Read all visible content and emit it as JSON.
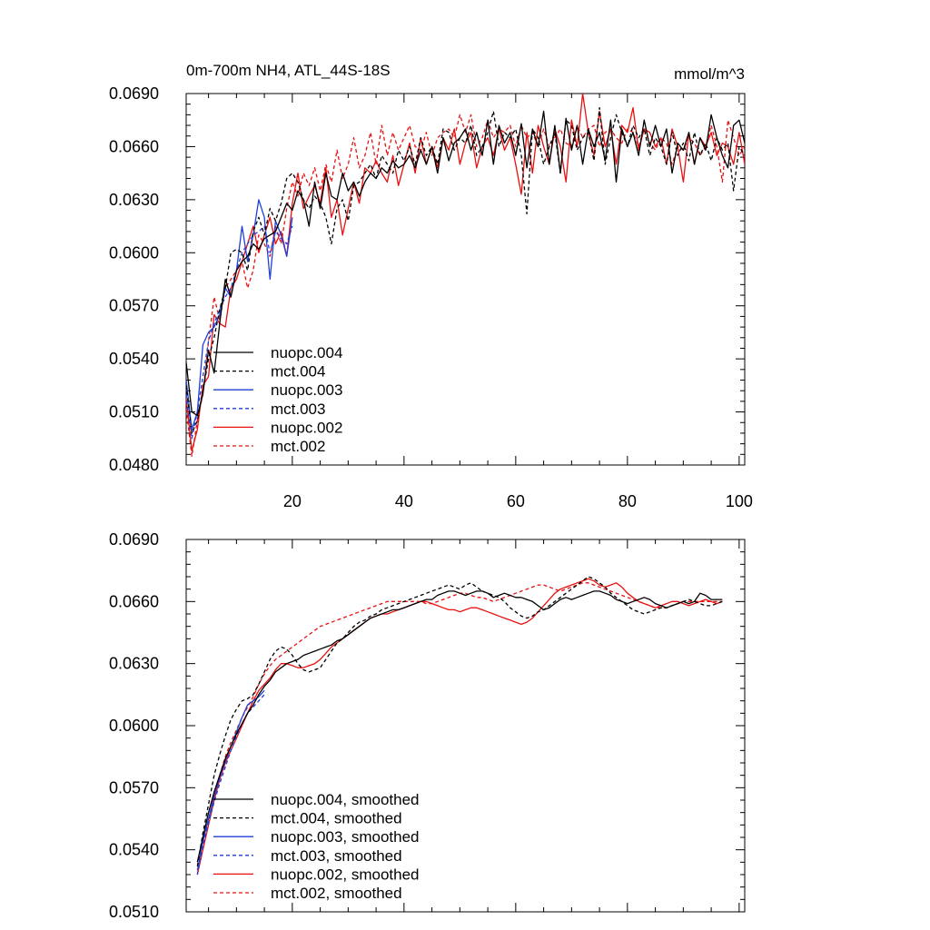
{
  "chart_data": [
    {
      "type": "line",
      "title": "0m-700m NH4, ATL_44S-18S",
      "units": "mmol/m^3",
      "xlabel": "",
      "ylabel": "",
      "xlim": [
        1,
        101
      ],
      "ylim": [
        0.048,
        0.069
      ],
      "xticks": [
        20,
        40,
        60,
        80,
        100
      ],
      "yticks": [
        "0.0480",
        "0.0510",
        "0.0540",
        "0.0570",
        "0.0600",
        "0.0630",
        "0.0660",
        "0.0690"
      ],
      "legend_position": "lower-left",
      "series": [
        {
          "name": "nuopc.004",
          "color": "#000000",
          "dash": "solid",
          "x_start": 1,
          "values": [
            0.0538,
            0.051,
            0.0508,
            0.052,
            0.0545,
            0.0532,
            0.056,
            0.0585,
            0.0575,
            0.059,
            0.0595,
            0.0598,
            0.0605,
            0.0602,
            0.0608,
            0.061,
            0.0612,
            0.062,
            0.0628,
            0.0624,
            0.0635,
            0.063,
            0.0615,
            0.064,
            0.0625,
            0.0645,
            0.0632,
            0.063,
            0.0645,
            0.0635,
            0.064,
            0.0632,
            0.064,
            0.0645,
            0.0642,
            0.0648,
            0.0645,
            0.0652,
            0.0648,
            0.065,
            0.0655,
            0.0648,
            0.0658,
            0.065,
            0.066,
            0.0645,
            0.0665,
            0.0652,
            0.0662,
            0.0665,
            0.067,
            0.0658,
            0.0668,
            0.0655,
            0.0675,
            0.065,
            0.0672,
            0.0662,
            0.0668,
            0.0655,
            0.0673,
            0.0648,
            0.067,
            0.066,
            0.068,
            0.065,
            0.0672,
            0.0645,
            0.0676,
            0.0658,
            0.0672,
            0.065,
            0.067,
            0.066,
            0.0668,
            0.0652,
            0.0675,
            0.064,
            0.067,
            0.066,
            0.0668,
            0.0655,
            0.0675,
            0.066,
            0.0672,
            0.066,
            0.067,
            0.0645,
            0.0662,
            0.0658,
            0.0668,
            0.065,
            0.0665,
            0.0658,
            0.0678,
            0.0665,
            0.0655,
            0.0648,
            0.0672,
            0.0675,
            0.0662
          ]
        },
        {
          "name": "mct.004",
          "color": "#000000",
          "dash": "dashed",
          "x_start": 1,
          "values": [
            0.0525,
            0.0498,
            0.0505,
            0.0522,
            0.054,
            0.0552,
            0.0568,
            0.058,
            0.06,
            0.0602,
            0.06,
            0.059,
            0.0612,
            0.062,
            0.061,
            0.0625,
            0.0618,
            0.0628,
            0.0642,
            0.0645,
            0.064,
            0.063,
            0.0625,
            0.0632,
            0.0628,
            0.062,
            0.0605,
            0.0625,
            0.063,
            0.0618,
            0.0638,
            0.064,
            0.0645,
            0.065,
            0.0642,
            0.0655,
            0.065,
            0.0645,
            0.0658,
            0.0652,
            0.066,
            0.065,
            0.0665,
            0.0655,
            0.066,
            0.065,
            0.067,
            0.0668,
            0.0658,
            0.0665,
            0.0662,
            0.0672,
            0.0655,
            0.066,
            0.0668,
            0.068,
            0.066,
            0.0668,
            0.0665,
            0.067,
            0.0655,
            0.0622,
            0.067,
            0.0665,
            0.065,
            0.066,
            0.0668,
            0.0645,
            0.0675,
            0.0672,
            0.0658,
            0.0665,
            0.0668,
            0.0652,
            0.0682,
            0.065,
            0.0665,
            0.0678,
            0.0668,
            0.066,
            0.0672,
            0.0665,
            0.067,
            0.0655,
            0.0665,
            0.066,
            0.065,
            0.0668,
            0.0655,
            0.0662,
            0.0652,
            0.0668,
            0.0655,
            0.0662,
            0.0652,
            0.0665,
            0.0658,
            0.0662,
            0.0635,
            0.066,
            0.0655
          ]
        },
        {
          "name": "nuopc.003",
          "color": "#1f3fd9",
          "dash": "solid",
          "x_start": 1,
          "values": [
            0.0528,
            0.05,
            0.051,
            0.0548,
            0.0555,
            0.0558,
            0.0565,
            0.058,
            0.0575,
            0.059,
            0.0615,
            0.0595,
            0.061,
            0.063,
            0.062,
            0.0585,
            0.0618,
            0.061,
            0.0598,
            0.062
          ]
        },
        {
          "name": "mct.003",
          "color": "#1f3fd9",
          "dash": "dashed",
          "x_start": 1,
          "values": [
            0.052,
            0.0495,
            0.051,
            0.053,
            0.055,
            0.056,
            0.0568,
            0.0575,
            0.058,
            0.059,
            0.06,
            0.0605,
            0.061,
            0.0612,
            0.0615,
            0.06,
            0.0612,
            0.0608,
            0.0605,
            0.0615
          ]
        },
        {
          "name": "nuopc.002",
          "color": "#e81010",
          "dash": "solid",
          "x_start": 1,
          "values": [
            0.0518,
            0.0488,
            0.05,
            0.0525,
            0.053,
            0.0565,
            0.056,
            0.0558,
            0.058,
            0.0585,
            0.0595,
            0.0605,
            0.0615,
            0.06,
            0.061,
            0.062,
            0.0605,
            0.0612,
            0.0598,
            0.0628,
            0.0645,
            0.0625,
            0.0632,
            0.0638,
            0.0628,
            0.0648,
            0.062,
            0.063,
            0.061,
            0.0625,
            0.064,
            0.0628,
            0.0648,
            0.0645,
            0.0652,
            0.0645,
            0.064,
            0.0655,
            0.0638,
            0.065,
            0.0662,
            0.0645,
            0.0665,
            0.065,
            0.066,
            0.0648,
            0.0665,
            0.0658,
            0.067,
            0.065,
            0.0662,
            0.0668,
            0.0648,
            0.066,
            0.0665,
            0.0655,
            0.067,
            0.0658,
            0.0665,
            0.065,
            0.0633,
            0.0668,
            0.0645,
            0.0672,
            0.066,
            0.065,
            0.067,
            0.066,
            0.064,
            0.0675,
            0.066,
            0.069,
            0.0668,
            0.0655,
            0.068,
            0.066,
            0.067,
            0.065,
            0.0672,
            0.0668,
            0.0682,
            0.0658,
            0.067,
            0.0668,
            0.066,
            0.0665,
            0.065,
            0.067,
            0.066,
            0.064,
            0.0668,
            0.065,
            0.0665,
            0.066,
            0.0668,
            0.0655,
            0.0662,
            0.066,
            0.065,
            0.0668,
            0.065
          ]
        },
        {
          "name": "mct.002",
          "color": "#e81010",
          "dash": "dashed",
          "x_start": 1,
          "values": [
            0.0512,
            0.0485,
            0.0505,
            0.052,
            0.055,
            0.0575,
            0.0562,
            0.058,
            0.0585,
            0.059,
            0.0595,
            0.058,
            0.059,
            0.061,
            0.0605,
            0.0598,
            0.0615,
            0.0605,
            0.0625,
            0.064,
            0.0632,
            0.0645,
            0.0638,
            0.0648,
            0.0635,
            0.065,
            0.064,
            0.0658,
            0.0642,
            0.065,
            0.0665,
            0.0648,
            0.0655,
            0.0668,
            0.065,
            0.0672,
            0.0655,
            0.0668,
            0.0658,
            0.0665,
            0.0672,
            0.066,
            0.0658,
            0.0668,
            0.0655,
            0.0665,
            0.0668,
            0.067,
            0.0665,
            0.0678,
            0.0668,
            0.0678,
            0.066,
            0.0665,
            0.0675,
            0.0665,
            0.067,
            0.0668,
            0.0672,
            0.066,
            0.0672,
            0.0665,
            0.0668,
            0.066,
            0.067,
            0.066,
            0.0665,
            0.067,
            0.0662,
            0.066,
            0.0672,
            0.0665,
            0.067,
            0.0672,
            0.066,
            0.0668,
            0.067,
            0.0665,
            0.0662,
            0.067,
            0.0668,
            0.066,
            0.067,
            0.0662,
            0.0658,
            0.0665,
            0.0662,
            0.065,
            0.066,
            0.0658,
            0.0665,
            0.0662,
            0.0655,
            0.066,
            0.0672,
            0.066,
            0.064,
            0.0675,
            0.0665,
            0.0655,
            0.066
          ]
        }
      ]
    },
    {
      "type": "line",
      "title": "",
      "xlabel": "",
      "ylabel": "",
      "xlim": [
        1,
        101
      ],
      "ylim": [
        0.051,
        0.069
      ],
      "yticks": [
        "0.0510",
        "0.0540",
        "0.0570",
        "0.0600",
        "0.0630",
        "0.0660",
        "0.0690"
      ],
      "legend_position": "lower-left",
      "series": [
        {
          "name": "nuopc.004, smoothed",
          "color": "#000000",
          "dash": "solid",
          "x_start": 3,
          "values": [
            0.0534,
            0.0546,
            0.0558,
            0.0568,
            0.0576,
            0.0584,
            0.059,
            0.0596,
            0.0601,
            0.0606,
            0.061,
            0.0615,
            0.0619,
            0.0622,
            0.0626,
            0.0628,
            0.063,
            0.0631,
            0.0632,
            0.0634,
            0.0635,
            0.0636,
            0.0637,
            0.0638,
            0.0639,
            0.0641,
            0.0642,
            0.0644,
            0.0646,
            0.0648,
            0.065,
            0.0652,
            0.0653,
            0.0654,
            0.0655,
            0.0656,
            0.0656,
            0.0657,
            0.0658,
            0.0659,
            0.066,
            0.0661,
            0.0661,
            0.0663,
            0.0664,
            0.0665,
            0.0665,
            0.0664,
            0.0663,
            0.0664,
            0.0665,
            0.0665,
            0.0664,
            0.0662,
            0.0663,
            0.0664,
            0.0663,
            0.0662,
            0.0662,
            0.0661,
            0.066,
            0.0658,
            0.0656,
            0.0657,
            0.0659,
            0.0661,
            0.0662,
            0.0661,
            0.0662,
            0.0663,
            0.0664,
            0.0665,
            0.0665,
            0.0664,
            0.0663,
            0.0661,
            0.066,
            0.0659,
            0.066,
            0.0661,
            0.0662,
            0.0661,
            0.0659,
            0.0658,
            0.0657,
            0.0658,
            0.0659,
            0.066,
            0.0659,
            0.066,
            0.0664,
            0.0663,
            0.0661,
            0.0661,
            0.0661
          ]
        },
        {
          "name": "mct.004, smoothed",
          "color": "#000000",
          "dash": "dashed",
          "x_start": 3,
          "values": [
            0.0532,
            0.0548,
            0.0562,
            0.0576,
            0.0586,
            0.0595,
            0.0603,
            0.0608,
            0.0612,
            0.0613,
            0.0615,
            0.062,
            0.0626,
            0.0632,
            0.0636,
            0.0638,
            0.0637,
            0.0634,
            0.063,
            0.0627,
            0.0626,
            0.0627,
            0.0628,
            0.0632,
            0.0636,
            0.064,
            0.0642,
            0.0645,
            0.0648,
            0.065,
            0.0651,
            0.0653,
            0.0654,
            0.0656,
            0.0657,
            0.0658,
            0.0659,
            0.066,
            0.0661,
            0.0662,
            0.0663,
            0.0664,
            0.0665,
            0.0666,
            0.0667,
            0.0668,
            0.0667,
            0.0666,
            0.0668,
            0.0669,
            0.0667,
            0.0665,
            0.0664,
            0.0663,
            0.0662,
            0.066,
            0.0657,
            0.0655,
            0.0653,
            0.0652,
            0.0653,
            0.0655,
            0.0656,
            0.0658,
            0.066,
            0.0662,
            0.0664,
            0.0666,
            0.0668,
            0.067,
            0.0672,
            0.0671,
            0.0669,
            0.0667,
            0.0664,
            0.0662,
            0.066,
            0.0658,
            0.0656,
            0.0655,
            0.0654,
            0.0655,
            0.0656,
            0.0657,
            0.0657,
            0.0658,
            0.0659,
            0.066,
            0.0661,
            0.066,
            0.0659,
            0.0658,
            0.0658,
            0.0659,
            0.066
          ]
        },
        {
          "name": "nuopc.003, smoothed",
          "color": "#1f3fd9",
          "dash": "solid",
          "x_start": 3,
          "values": [
            0.053,
            0.0544,
            0.0555,
            0.0566,
            0.0575,
            0.0583,
            0.059,
            0.0597,
            0.0604,
            0.061,
            0.0612,
            0.0614,
            0.0617
          ]
        },
        {
          "name": "mct.003, smoothed",
          "color": "#1f3fd9",
          "dash": "dashed",
          "x_start": 3,
          "values": [
            0.0528,
            0.0542,
            0.0553,
            0.0563,
            0.0572,
            0.058,
            0.0588,
            0.0595,
            0.0601,
            0.0606,
            0.0609,
            0.0612,
            0.0615
          ]
        },
        {
          "name": "nuopc.002, smoothed",
          "color": "#e81010",
          "dash": "solid",
          "x_start": 3,
          "values": [
            0.0528,
            0.054,
            0.0552,
            0.0564,
            0.0574,
            0.0582,
            0.0588,
            0.0594,
            0.06,
            0.0606,
            0.0612,
            0.0617,
            0.062,
            0.0623,
            0.0627,
            0.063,
            0.063,
            0.0629,
            0.0628,
            0.0628,
            0.0629,
            0.063,
            0.0632,
            0.0635,
            0.0638,
            0.064,
            0.0642,
            0.0644,
            0.0646,
            0.0648,
            0.065,
            0.0652,
            0.0653,
            0.0654,
            0.0654,
            0.0655,
            0.0656,
            0.0657,
            0.0658,
            0.0659,
            0.066,
            0.066,
            0.0659,
            0.0658,
            0.0657,
            0.0656,
            0.0656,
            0.0655,
            0.0656,
            0.0657,
            0.0657,
            0.0656,
            0.0655,
            0.0654,
            0.0653,
            0.0652,
            0.0651,
            0.065,
            0.0649,
            0.065,
            0.0652,
            0.0655,
            0.0658,
            0.0661,
            0.0664,
            0.0666,
            0.0667,
            0.0668,
            0.0669,
            0.067,
            0.0671,
            0.067,
            0.0668,
            0.0667,
            0.0668,
            0.0669,
            0.0667,
            0.0664,
            0.0662,
            0.066,
            0.0659,
            0.0658,
            0.0657,
            0.0658,
            0.0659,
            0.066,
            0.066,
            0.0659,
            0.0658,
            0.0659,
            0.066,
            0.0661,
            0.066,
            0.0659,
            0.066
          ]
        },
        {
          "name": "mct.002, smoothed",
          "color": "#e81010",
          "dash": "dashed",
          "x_start": 3,
          "values": [
            0.0528,
            0.0542,
            0.0554,
            0.0566,
            0.0576,
            0.0585,
            0.0592,
            0.0598,
            0.0604,
            0.0609,
            0.0614,
            0.062,
            0.0625,
            0.0629,
            0.0632,
            0.0634,
            0.0636,
            0.0638,
            0.064,
            0.0642,
            0.0644,
            0.0646,
            0.0648,
            0.0649,
            0.065,
            0.0651,
            0.0652,
            0.0653,
            0.0654,
            0.0655,
            0.0656,
            0.0657,
            0.0658,
            0.0659,
            0.066,
            0.066,
            0.066,
            0.066,
            0.066,
            0.066,
            0.066,
            0.0659,
            0.0659,
            0.066,
            0.0661,
            0.0662,
            0.0663,
            0.0664,
            0.0664,
            0.0663,
            0.0662,
            0.0662,
            0.0661,
            0.066,
            0.0661,
            0.0662,
            0.0663,
            0.0664,
            0.0665,
            0.0666,
            0.0667,
            0.0668,
            0.0668,
            0.0667,
            0.0666,
            0.0665,
            0.0666,
            0.0667,
            0.0668,
            0.0669,
            0.0669,
            0.0668,
            0.0667,
            0.0666,
            0.0665,
            0.0664,
            0.0663,
            0.0662,
            0.0661,
            0.066,
            0.0659,
            0.0658,
            0.0657,
            0.0657,
            0.0657,
            0.0658,
            0.0659,
            0.066,
            0.066,
            0.066,
            0.066,
            0.066,
            0.066,
            0.066,
            0.066
          ]
        }
      ]
    }
  ]
}
